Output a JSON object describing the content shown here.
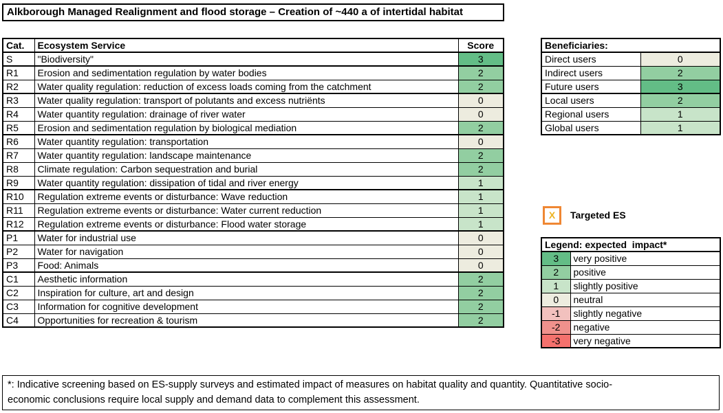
{
  "title": "Alkborough Managed Realignment and flood storage – Creation of ~440 a of intertidal habitat",
  "main_table": {
    "headers": {
      "cat": "Cat.",
      "service": "Ecosystem Service",
      "score": "Score"
    },
    "section_break_after": [
      "S",
      "R2",
      "R5",
      "R9",
      "R12",
      "P3"
    ],
    "rows": [
      {
        "cat": "S",
        "service": "\"Biodiversity\"",
        "score": "3"
      },
      {
        "cat": "R1",
        "service": "Erosion and sedimentation regulation by water bodies",
        "score": "2"
      },
      {
        "cat": "R2",
        "service": "Water quality regulation: reduction of excess loads coming from the catchment",
        "score": "2"
      },
      {
        "cat": "R3",
        "service": "Water quality regulation: transport of polutants and excess nutriënts",
        "score": "0"
      },
      {
        "cat": "R4",
        "service": "Water quantity regulation: drainage of river water",
        "score": "0"
      },
      {
        "cat": "R5",
        "service": "Erosion and sedimentation regulation by biological mediation",
        "score": "2"
      },
      {
        "cat": "R6",
        "service": "Water quantity regulation: transportation",
        "score": "0"
      },
      {
        "cat": "R7",
        "service": "Water quantity regulation: landscape maintenance",
        "score": "2"
      },
      {
        "cat": "R8",
        "service": "Climate regulation: Carbon sequestration and burial",
        "score": "2"
      },
      {
        "cat": "R9",
        "service": "Water quantity regulation: dissipation of tidal and river energy",
        "score": "1"
      },
      {
        "cat": "R10",
        "service": "Regulation extreme events or disturbance: Wave reduction",
        "score": "1"
      },
      {
        "cat": "R11",
        "service": "Regulation extreme events or disturbance: Water current reduction",
        "score": "1"
      },
      {
        "cat": "R12",
        "service": "Regulation extreme events or disturbance: Flood water storage",
        "score": "1"
      },
      {
        "cat": "P1",
        "service": "Water for industrial use",
        "score": "0"
      },
      {
        "cat": "P2",
        "service": "Water for navigation",
        "score": "0"
      },
      {
        "cat": "P3",
        "service": "Food: Animals",
        "score": "0"
      },
      {
        "cat": "C1",
        "service": "Aesthetic information",
        "score": "2"
      },
      {
        "cat": "C2",
        "service": "Inspiration for culture, art and design",
        "score": "2"
      },
      {
        "cat": "C3",
        "service": "Information for cognitive development",
        "score": "2"
      },
      {
        "cat": "C4",
        "service": "Opportunities for recreation & tourism",
        "score": "2"
      }
    ]
  },
  "beneficiaries": {
    "header": "Beneficiaries:",
    "section_break_after": [
      "Future users"
    ],
    "rows": [
      {
        "label": "Direct users",
        "score": "0"
      },
      {
        "label": "Indirect users",
        "score": "2"
      },
      {
        "label": "Future users",
        "score": "3"
      },
      {
        "label": "Local users",
        "score": "2"
      },
      {
        "label": "Regional users",
        "score": "1"
      },
      {
        "label": "Global users",
        "score": "1"
      }
    ]
  },
  "targeted": {
    "mark": "X",
    "label": "Targeted ES"
  },
  "legend": {
    "header": "Legend: expected  impact*",
    "rows": [
      {
        "value": "3",
        "label": "very positive"
      },
      {
        "value": "2",
        "label": "positive"
      },
      {
        "value": "1",
        "label": "slightly positive"
      },
      {
        "value": "0",
        "label": "neutral"
      },
      {
        "value": "-1",
        "label": "slightly negative"
      },
      {
        "value": "-2",
        "label": "negative"
      },
      {
        "value": "-3",
        "label": "very negative"
      }
    ]
  },
  "footnote": {
    "line1": "*: Indicative screening based on ES-supply surveys and estimated impact of measures on habitat quality and quantity. Quantitative socio-",
    "line2": "economic conclusions require local supply and demand data to complement this assessment."
  },
  "colors": {
    "3": "#63bd86",
    "2": "#92cea1",
    "1": "#c8e4c9",
    "0": "#edecdf",
    "-1": "#f2c1be",
    "-2": "#f0918c",
    "-3": "#f4716d",
    "targeted_border": "#ef8733",
    "targeted_mark": "#edb322",
    "border": "#000000"
  }
}
